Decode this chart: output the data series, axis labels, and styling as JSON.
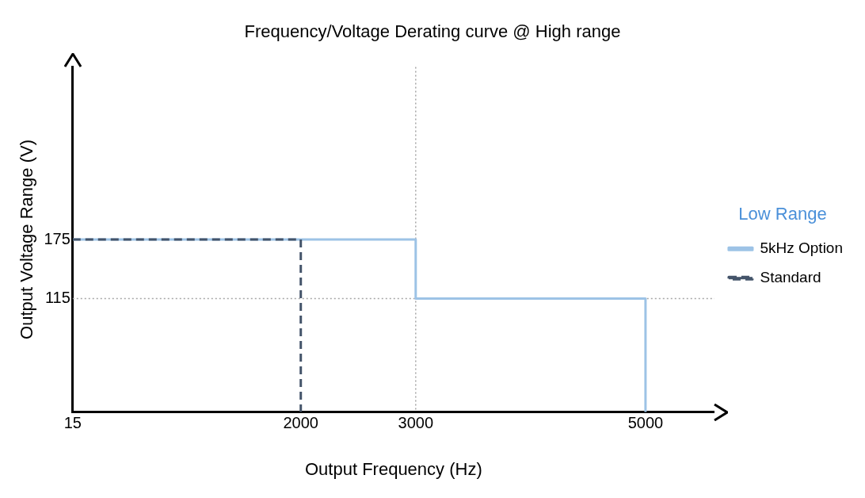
{
  "chart_data": {
    "type": "line",
    "title": "Frequency/Voltage Derating curve @ High range",
    "xlabel": "Output Frequency (Hz)",
    "ylabel": "Output Voltage Range (V)",
    "legend_title": "Low Range",
    "legend": "right",
    "grid": false,
    "marker": "none",
    "xlim": [
      15,
      5600
    ],
    "xticks": [
      15,
      2000,
      3000,
      5000
    ],
    "ylim": [
      0,
      350
    ],
    "yticks": [
      115,
      175
    ],
    "series": [
      {
        "name": "5kHz Option",
        "color": "#9dc3e6",
        "line_style": "solid",
        "x": [
          15,
          3000,
          3000,
          5000,
          5000
        ],
        "values": [
          175,
          175,
          115,
          115,
          0
        ]
      },
      {
        "name": "Standard",
        "color": "#44546a",
        "line_style": "dashed",
        "x": [
          15,
          2000,
          2000
        ],
        "values": [
          175,
          175,
          0
        ]
      }
    ],
    "ref_lines": [
      {
        "axis": "y",
        "value": 115,
        "color": "#a6a6a6",
        "line_style": "dotted"
      },
      {
        "axis": "x",
        "value": 3000,
        "color": "#a6a6a6",
        "line_style": "dotted"
      }
    ]
  }
}
